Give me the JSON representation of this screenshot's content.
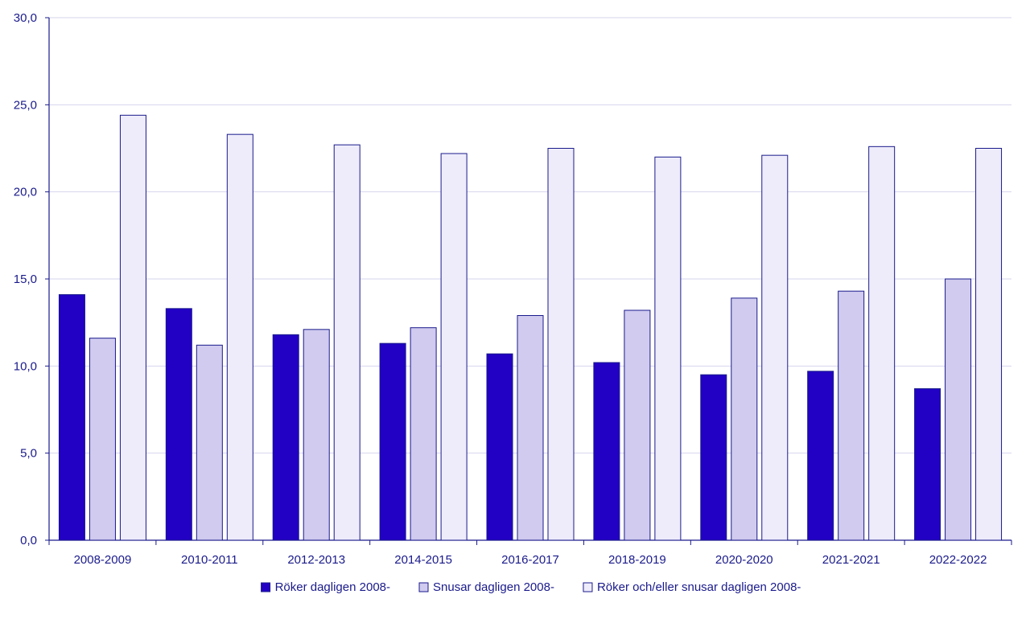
{
  "chart_data": {
    "type": "bar",
    "title": "",
    "xlabel": "",
    "ylabel": "",
    "categories": [
      "2008-2009",
      "2010-2011",
      "2012-2013",
      "2014-2015",
      "2016-2017",
      "2018-2019",
      "2020-2020",
      "2021-2021",
      "2022-2022"
    ],
    "ylim": [
      0,
      30
    ],
    "yticks": [
      "0,0",
      "5,0",
      "10,0",
      "15,0",
      "20,0",
      "25,0",
      "30,0"
    ],
    "ytick_values": [
      0,
      5,
      10,
      15,
      20,
      25,
      30
    ],
    "grid": true,
    "legend_position": "bottom",
    "series": [
      {
        "name": "Röker dagligen 2008-",
        "color": "#2200c4",
        "values": [
          14.1,
          13.3,
          11.8,
          11.3,
          10.7,
          10.2,
          9.5,
          9.7,
          8.7
        ]
      },
      {
        "name": "Snusar dagligen 2008-",
        "color": "#d0cbef",
        "values": [
          11.6,
          11.2,
          12.1,
          12.2,
          12.9,
          13.2,
          13.9,
          14.3,
          15.0
        ]
      },
      {
        "name": "Röker och/eller snusar dagligen 2008-",
        "color": "#eeecfb",
        "values": [
          24.4,
          23.3,
          22.7,
          22.2,
          22.5,
          22.0,
          22.1,
          22.6,
          22.5
        ]
      }
    ],
    "colors": {
      "axis": "#1a1a8c",
      "grid": "#d6d4ee",
      "text": "#1a1a8c",
      "bar_stroke": "#1a1a8c"
    }
  }
}
